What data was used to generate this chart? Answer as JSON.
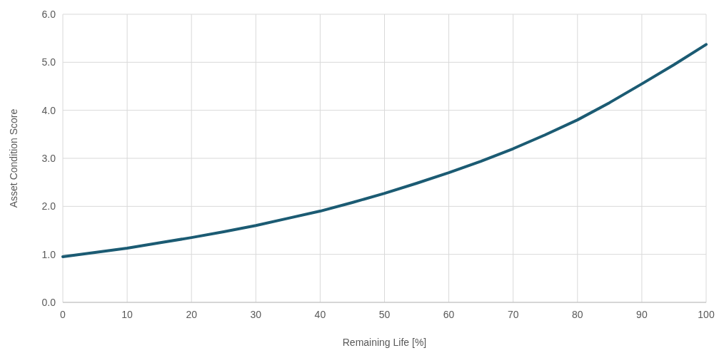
{
  "chart_data": {
    "type": "line",
    "xlabel": "Remaining Life [%]",
    "ylabel": "Asset Condition Score",
    "x": [
      0,
      5,
      10,
      15,
      20,
      25,
      30,
      35,
      40,
      45,
      50,
      55,
      60,
      65,
      70,
      75,
      80,
      85,
      90,
      95,
      100
    ],
    "series": [
      {
        "color": "#1b5b73",
        "values": [
          0.95,
          1.04,
          1.13,
          1.24,
          1.35,
          1.47,
          1.6,
          1.75,
          1.9,
          2.08,
          2.27,
          2.48,
          2.7,
          2.94,
          3.2,
          3.49,
          3.8,
          4.16,
          4.55,
          4.95,
          5.37
        ]
      }
    ],
    "xlim": [
      0,
      100
    ],
    "xticks": [
      0,
      10,
      20,
      30,
      40,
      50,
      60,
      70,
      80,
      90,
      100
    ],
    "ylim": [
      0,
      6
    ],
    "yticks": [
      {
        "value": 0,
        "label": "0.0"
      },
      {
        "value": 1,
        "label": "1.0"
      },
      {
        "value": 2,
        "label": "2.0"
      },
      {
        "value": 3,
        "label": "3.0"
      },
      {
        "value": 4,
        "label": "4.0"
      },
      {
        "value": 5,
        "label": "5.0"
      },
      {
        "value": 6,
        "label": "6.0"
      }
    ],
    "grid": true,
    "line_style": "solid",
    "marker": "none"
  }
}
